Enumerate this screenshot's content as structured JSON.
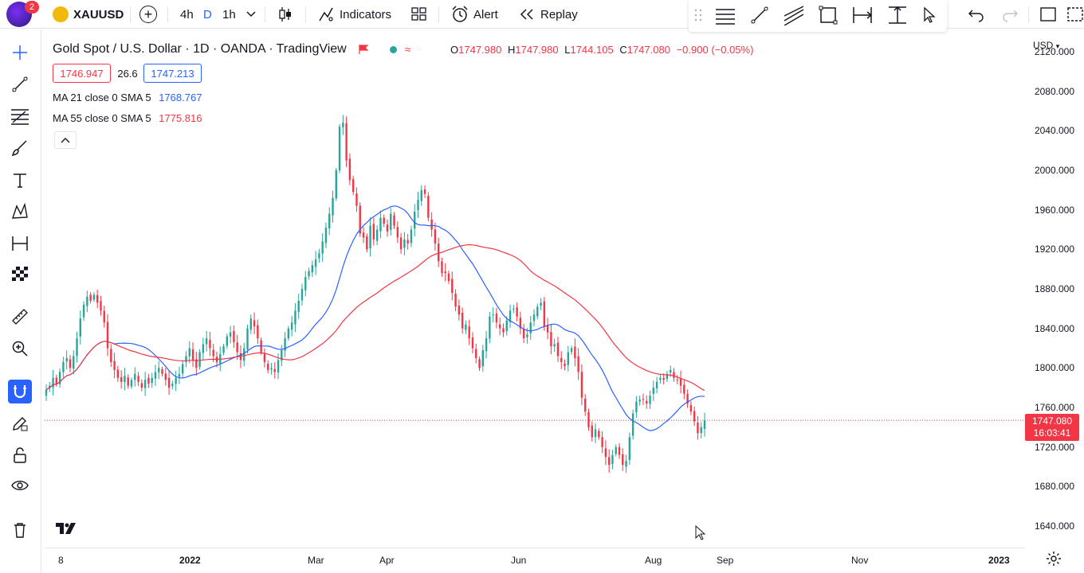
{
  "header": {
    "notification_count": "2",
    "symbol": "XAUUSD",
    "intervals": [
      "4h",
      "D",
      "1h"
    ],
    "active_interval": "D",
    "indicators_label": "Indicators",
    "alert_label": "Alert",
    "replay_label": "Replay"
  },
  "legend": {
    "title": "Gold Spot / U.S. Dollar · 1D · OANDA · TradingView",
    "ohlc": {
      "o_key": "O",
      "o": "1747.980",
      "h_key": "H",
      "h": "1747.980",
      "l_key": "L",
      "l": "1744.105",
      "c_key": "C",
      "c": "1747.080",
      "change": "−0.900 (−0.05%)"
    },
    "bid": "1746.947",
    "spread": "26.6",
    "ask": "1747.213",
    "ma21_label": "MA 21 close 0 SMA 5",
    "ma21_value": "1768.767",
    "ma55_label": "MA 55 close 0 SMA 5",
    "ma55_value": "1775.816"
  },
  "price_axis": {
    "currency": "USD",
    "ticks": [
      "2120.000",
      "2080.000",
      "2040.000",
      "2000.000",
      "1960.000",
      "1920.000",
      "1880.000",
      "1840.000",
      "1800.000",
      "1760.000",
      "1720.000",
      "1680.000",
      "1640.000"
    ],
    "last_price": "1747.080",
    "countdown": "16:03:41"
  },
  "time_axis": {
    "ticks": [
      {
        "label": "8",
        "bold": false
      },
      {
        "label": "2022",
        "bold": true
      },
      {
        "label": "Mar",
        "bold": false
      },
      {
        "label": "Apr",
        "bold": false
      },
      {
        "label": "Jun",
        "bold": false
      },
      {
        "label": "Aug",
        "bold": false
      },
      {
        "label": "Sep",
        "bold": false
      },
      {
        "label": "Nov",
        "bold": false
      },
      {
        "label": "2023",
        "bold": true
      }
    ]
  },
  "colors": {
    "up": "#26a69a",
    "down": "#f23645",
    "ma21": "#2962ff",
    "ma55": "#f23645",
    "accent": "#2962ff"
  },
  "chart_data": {
    "type": "candlestick",
    "ylim": [
      1620,
      2140
    ],
    "close": [
      1778,
      1782,
      1790,
      1784,
      1796,
      1806,
      1810,
      1800,
      1812,
      1830,
      1850,
      1864,
      1872,
      1868,
      1874,
      1866,
      1858,
      1846,
      1820,
      1806,
      1798,
      1790,
      1786,
      1792,
      1782,
      1788,
      1794,
      1786,
      1780,
      1788,
      1784,
      1790,
      1796,
      1800,
      1794,
      1788,
      1780,
      1784,
      1790,
      1794,
      1804,
      1812,
      1820,
      1808,
      1800,
      1816,
      1824,
      1830,
      1820,
      1812,
      1806,
      1814,
      1822,
      1832,
      1836,
      1826,
      1816,
      1808,
      1820,
      1840,
      1850,
      1842,
      1830,
      1816,
      1806,
      1798,
      1800,
      1796,
      1808,
      1818,
      1830,
      1840,
      1846,
      1858,
      1868,
      1880,
      1892,
      1898,
      1904,
      1910,
      1916,
      1928,
      1942,
      1956,
      1972,
      2000,
      2044,
      2048,
      2010,
      1990,
      1978,
      1964,
      1936,
      1932,
      1920,
      1944,
      1930,
      1940,
      1952,
      1946,
      1938,
      1956,
      1944,
      1932,
      1920,
      1930,
      1926,
      1940,
      1958,
      1970,
      1980,
      1976,
      1952,
      1940,
      1926,
      1908,
      1896,
      1896,
      1888,
      1876,
      1862,
      1854,
      1840,
      1844,
      1830,
      1820,
      1810,
      1800,
      1818,
      1830,
      1852,
      1854,
      1846,
      1840,
      1836,
      1848,
      1858,
      1860,
      1852,
      1840,
      1830,
      1834,
      1846,
      1854,
      1862,
      1866,
      1842,
      1836,
      1822,
      1824,
      1812,
      1806,
      1802,
      1816,
      1820,
      1810,
      1796,
      1770,
      1756,
      1740,
      1730,
      1738,
      1730,
      1720,
      1710,
      1702,
      1712,
      1720,
      1712,
      1702,
      1706,
      1730,
      1754,
      1766,
      1768,
      1768,
      1764,
      1772,
      1780,
      1786,
      1790,
      1788,
      1794,
      1798,
      1790,
      1788,
      1782,
      1774,
      1764,
      1756,
      1746,
      1734,
      1740,
      1747
    ],
    "ma21_label": "MA 21",
    "ma55_label": "MA 55"
  }
}
